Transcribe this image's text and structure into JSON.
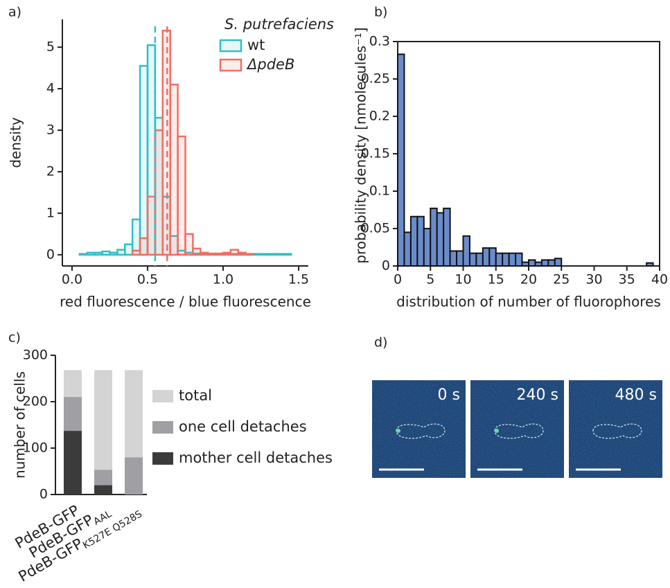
{
  "chart_data": [
    {
      "type": "histogram_overlay",
      "panel_label": "a)",
      "xlabel": "red fluorescence / blue fluorescence",
      "ylabel": "density",
      "legend_title": "S. putrefaciens",
      "xlim": [
        -0.064,
        1.564
      ],
      "ylim": [
        -0.27,
        5.67
      ],
      "xticks": [
        {
          "value": 0,
          "label": "0.0"
        },
        0.5,
        {
          "value": 1,
          "label": "1.0"
        },
        1.5
      ],
      "yticks": [
        0,
        1,
        2,
        3,
        4,
        5
      ],
      "series": [
        {
          "name": "wt",
          "color": "#2ebfc6",
          "mean": 0.55,
          "bins": [
            0.05,
            0.1,
            0.15,
            0.2,
            0.25,
            0.3,
            0.35,
            0.4,
            0.45,
            0.5,
            0.55,
            0.6,
            0.65,
            0.7,
            0.75,
            0.8,
            0.85,
            0.9,
            0.95,
            1.0,
            1.05,
            1.1,
            1.15,
            1.2,
            1.25,
            1.3,
            1.35,
            1.4,
            1.45
          ],
          "values": [
            0.02,
            0.05,
            0.05,
            0.08,
            0.05,
            0.12,
            0.25,
            0.85,
            4.55,
            5.05,
            3.3,
            1.4,
            0.45,
            0.1,
            0.05,
            0.03,
            0.03,
            0.02,
            0.02,
            0.02,
            0.02,
            0.02,
            0.02,
            0.02,
            0.02,
            0.02,
            0.02,
            0.02
          ]
        },
        {
          "name": "ΔpdeB",
          "color": "#ef6f64",
          "mean": 0.63,
          "bins": [
            0.4,
            0.45,
            0.5,
            0.55,
            0.6,
            0.65,
            0.7,
            0.75,
            0.8,
            0.85,
            0.9,
            0.95,
            1.0,
            1.05,
            1.1,
            1.15,
            1.2
          ],
          "values": [
            0.1,
            0.4,
            1.4,
            3.0,
            5.4,
            4.1,
            2.85,
            0.5,
            0.15,
            0.05,
            0.03,
            0.03,
            0.05,
            0.12,
            0.05,
            0.02
          ]
        }
      ]
    },
    {
      "type": "histogram",
      "panel_label": "b)",
      "xlabel": "distribution of number of fluorophores",
      "ylabel": "probability density [nmolecules⁻¹]",
      "color": "#6a8ccc",
      "xlim": [
        0,
        40
      ],
      "ylim": [
        0,
        0.3
      ],
      "xticks": [
        0,
        5,
        10,
        15,
        20,
        25,
        30,
        35,
        40
      ],
      "yticks": [
        0,
        0.05,
        0.1,
        0.15,
        0.2,
        0.25,
        0.3
      ],
      "bins": [
        0,
        1,
        2,
        3,
        4,
        5,
        6,
        7,
        8,
        9,
        10,
        11,
        12,
        13,
        14,
        15,
        16,
        17,
        18,
        19,
        20,
        21,
        22,
        23,
        24,
        25,
        26,
        27,
        28,
        29,
        30,
        31,
        32,
        33,
        34,
        35,
        36,
        37,
        38,
        39,
        40
      ],
      "values": [
        0.283,
        0.045,
        0.066,
        0.066,
        0.05,
        0.077,
        0.071,
        0.077,
        0.02,
        0.02,
        0.04,
        0.017,
        0.017,
        0.024,
        0.024,
        0.017,
        0.017,
        0.017,
        0.017,
        0.005,
        0.008,
        0.005,
        0.008,
        0.008,
        0.01,
        0,
        0,
        0,
        0,
        0,
        0,
        0,
        0,
        0,
        0,
        0,
        0,
        0,
        0.004,
        0
      ]
    },
    {
      "type": "bar_overlay",
      "panel_label": "c)",
      "ylabel": "number of cells",
      "categories": [
        "PdeB-GFP",
        "PdeB-GFP",
        "PdeB-GFP"
      ],
      "category_subscripts": [
        null,
        "AAL",
        "K527E Q528S"
      ],
      "ylim": [
        0,
        300
      ],
      "yticks": [
        0,
        100,
        200,
        300
      ],
      "series": [
        {
          "name": "total",
          "color": "#d4d4d4",
          "values": [
            268,
            268,
            268
          ]
        },
        {
          "name": "one cell detaches",
          "color": "#a0a0a4",
          "values": [
            210,
            53,
            80
          ]
        },
        {
          "name": "mother cell detaches",
          "color": "#3b3b3b",
          "values": [
            137,
            20,
            0
          ]
        }
      ]
    }
  ],
  "image_panel": {
    "panel_label": "d)",
    "frames": [
      "0 s",
      "240 s",
      "480 s"
    ]
  }
}
